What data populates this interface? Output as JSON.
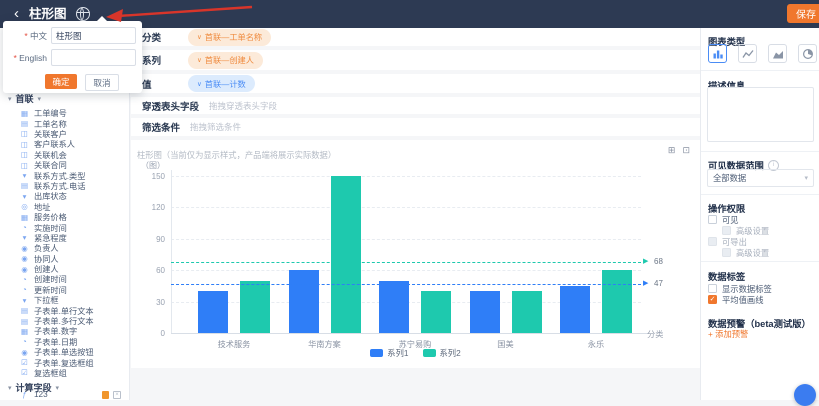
{
  "navbar": {
    "back_label": "‹",
    "title": "柱形图",
    "save_label": "保存"
  },
  "rename_popover": {
    "fields": [
      {
        "label": "中文",
        "value": "柱形图"
      },
      {
        "label": "English",
        "value": ""
      }
    ],
    "confirm_label": "确定",
    "cancel_label": "取消"
  },
  "sidebar": {
    "dataset_section": {
      "title": "首联"
    },
    "fields": [
      {
        "label": "工单编号",
        "icon": "id-field-icon"
      },
      {
        "label": "工单名称",
        "icon": "text-field-icon"
      },
      {
        "label": "关联客户",
        "icon": "link-field-icon"
      },
      {
        "label": "客户联系人",
        "icon": "link-field-icon"
      },
      {
        "label": "关联机会",
        "icon": "link-field-icon"
      },
      {
        "label": "关联合同",
        "icon": "link-field-icon"
      },
      {
        "label": "联系方式.类型",
        "icon": "select-field-icon"
      },
      {
        "label": "联系方式.电话",
        "icon": "text-field-icon"
      },
      {
        "label": "出库状态",
        "icon": "select-field-icon"
      },
      {
        "label": "地址",
        "icon": "location-field-icon"
      },
      {
        "label": "服务价格",
        "icon": "number-field-icon"
      },
      {
        "label": "实施时间",
        "icon": "time-field-icon"
      },
      {
        "label": "紧急程度",
        "icon": "select-field-icon"
      },
      {
        "label": "负责人",
        "icon": "person-field-icon"
      },
      {
        "label": "协同人",
        "icon": "person-field-icon"
      },
      {
        "label": "创建人",
        "icon": "person-field-icon"
      },
      {
        "label": "创建时间",
        "icon": "time-field-icon"
      },
      {
        "label": "更新时间",
        "icon": "time-field-icon"
      },
      {
        "label": "下拉框",
        "icon": "select-field-icon"
      },
      {
        "label": "子表单.单行文本",
        "icon": "text-field-icon"
      },
      {
        "label": "子表单.多行文本",
        "icon": "text-field-icon"
      },
      {
        "label": "子表单.数字",
        "icon": "number-field-icon"
      },
      {
        "label": "子表单.日期",
        "icon": "time-field-icon"
      },
      {
        "label": "子表单.单选按钮",
        "icon": "radio-field-icon"
      },
      {
        "label": "子表单.复选框组",
        "icon": "checkbox-field-icon"
      },
      {
        "label": "复选框组",
        "icon": "checkbox-field-icon"
      }
    ],
    "calc_section": {
      "title": "计算字段",
      "items": [
        {
          "label": "123",
          "icon": "formula-icon"
        }
      ]
    }
  },
  "config": {
    "rows": [
      {
        "label": "分类",
        "tag": "首联—工单名称",
        "tag_type": "dimension"
      },
      {
        "label": "系列",
        "tag": "首联—创建人",
        "tag_type": "dimension"
      },
      {
        "label": "值",
        "tag": "首联—计数",
        "tag_type": "measure"
      },
      {
        "label": "穿透表头字段",
        "placeholder": "拖拽穿透表头字段"
      },
      {
        "label": "筛选条件",
        "placeholder": "拖拽筛选条件"
      }
    ]
  },
  "chart_card": {
    "note": "柱形图（当前仅为显示样式，产品端将展示实际数据）",
    "toolbar_icons": [
      "export-image",
      "fullscreen"
    ]
  },
  "chart_data": {
    "type": "bar",
    "categories": [
      "技术服务",
      "华南方案",
      "苏宁易购",
      "国美",
      "永乐"
    ],
    "series": [
      {
        "name": "系列1",
        "color": "#2f7ef7",
        "values": [
          40,
          60,
          50,
          40,
          45
        ]
      },
      {
        "name": "系列2",
        "color": "#1ec9ae",
        "values": [
          50,
          150,
          40,
          40,
          60
        ]
      }
    ],
    "title": "",
    "xlabel": "分类",
    "ylabel": "",
    "y_unit": "（图）",
    "ylim": [
      0,
      150
    ],
    "ytick_step": 30,
    "grid": true,
    "legend_position": "bottom",
    "marker_lines": [
      {
        "series": "系列2",
        "label": "68",
        "value": 68,
        "color": "#1ec9ae"
      },
      {
        "series": "系列1",
        "label": "47",
        "value": 47,
        "color": "#2f7ef7"
      }
    ]
  },
  "panel": {
    "chart_type": {
      "title": "图表类型",
      "options": [
        {
          "name": "bar",
          "icon": "bar-chart-icon",
          "selected": true
        },
        {
          "name": "line",
          "icon": "line-chart-icon",
          "selected": false
        },
        {
          "name": "area",
          "icon": "area-chart-icon",
          "selected": false
        },
        {
          "name": "pie",
          "icon": "pie-chart-icon",
          "selected": false
        }
      ]
    },
    "description": {
      "title": "描述信息",
      "value": ""
    },
    "visible_range": {
      "title": "可见数据范围",
      "value": "全部数据"
    },
    "permissions": {
      "title": "操作权限",
      "items": [
        {
          "label": "可见",
          "checked": false,
          "disabled": false,
          "indent": false
        },
        {
          "label": "高级设置",
          "checked": false,
          "disabled": true,
          "indent": true
        },
        {
          "label": "可导出",
          "checked": false,
          "disabled": true,
          "indent": false
        },
        {
          "label": "高级设置",
          "checked": false,
          "disabled": true,
          "indent": true
        }
      ]
    },
    "data_label": {
      "title": "数据标签",
      "items": [
        {
          "label": "显示数据标签",
          "checked": false
        },
        {
          "label": "平均值画线",
          "checked": true
        }
      ]
    },
    "alert": {
      "title": "数据预警（beta测试版）",
      "add_label": "+ 添加预警"
    }
  }
}
